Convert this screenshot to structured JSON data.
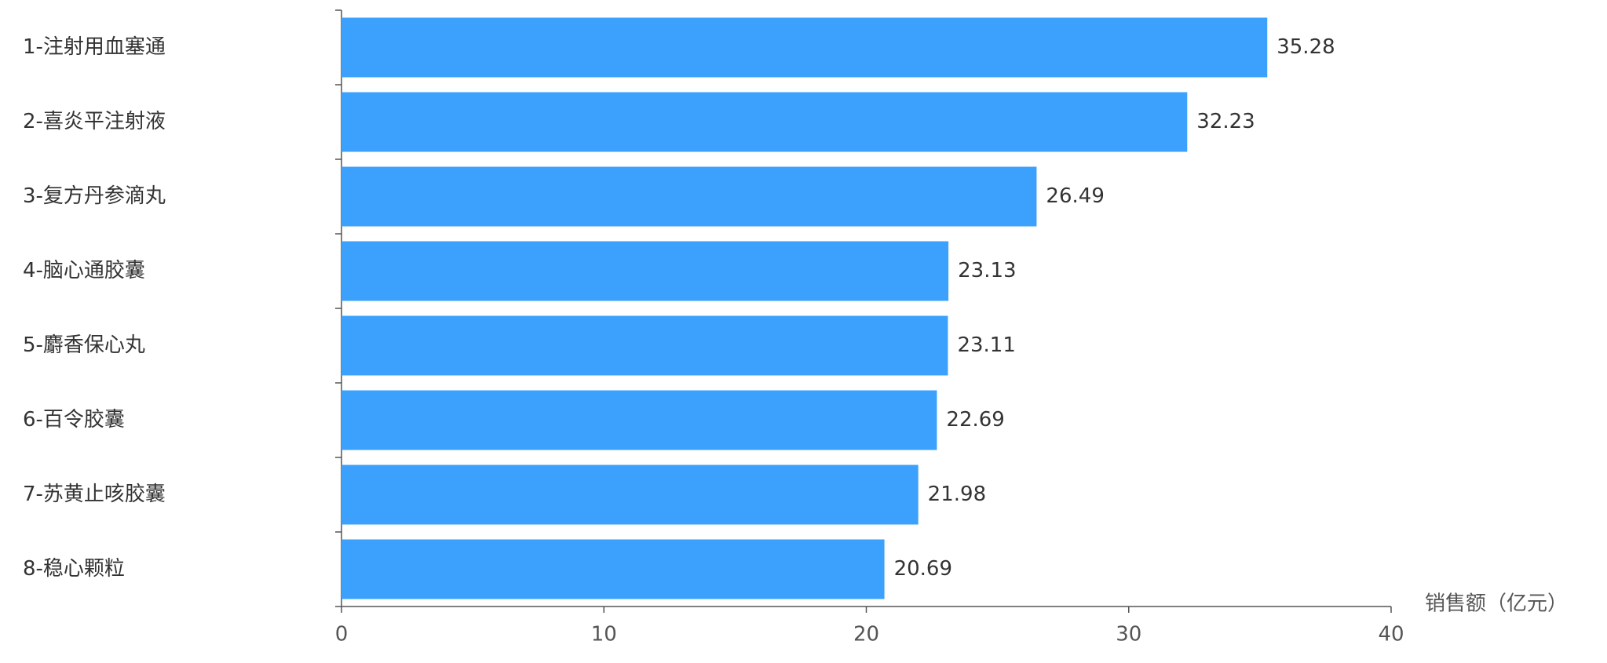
{
  "chart_data": {
    "type": "hbar",
    "categories": [
      "1-注射用血塞通",
      "2-喜炎平注射液",
      "3-复方丹参滴丸",
      "4-脑心通胶囊",
      "5-麝香保心丸",
      "6-百令胶囊",
      "7-苏黄止咳胶囊",
      "8-稳心颗粒"
    ],
    "values": [
      35.28,
      32.23,
      26.49,
      23.13,
      23.11,
      22.69,
      21.98,
      20.69
    ],
    "color": "#3ca0fd",
    "x_label": "销售额（亿元）",
    "xlim": [
      0,
      40
    ],
    "xticks": [
      0,
      10,
      20,
      30,
      40
    ],
    "grid": false
  }
}
